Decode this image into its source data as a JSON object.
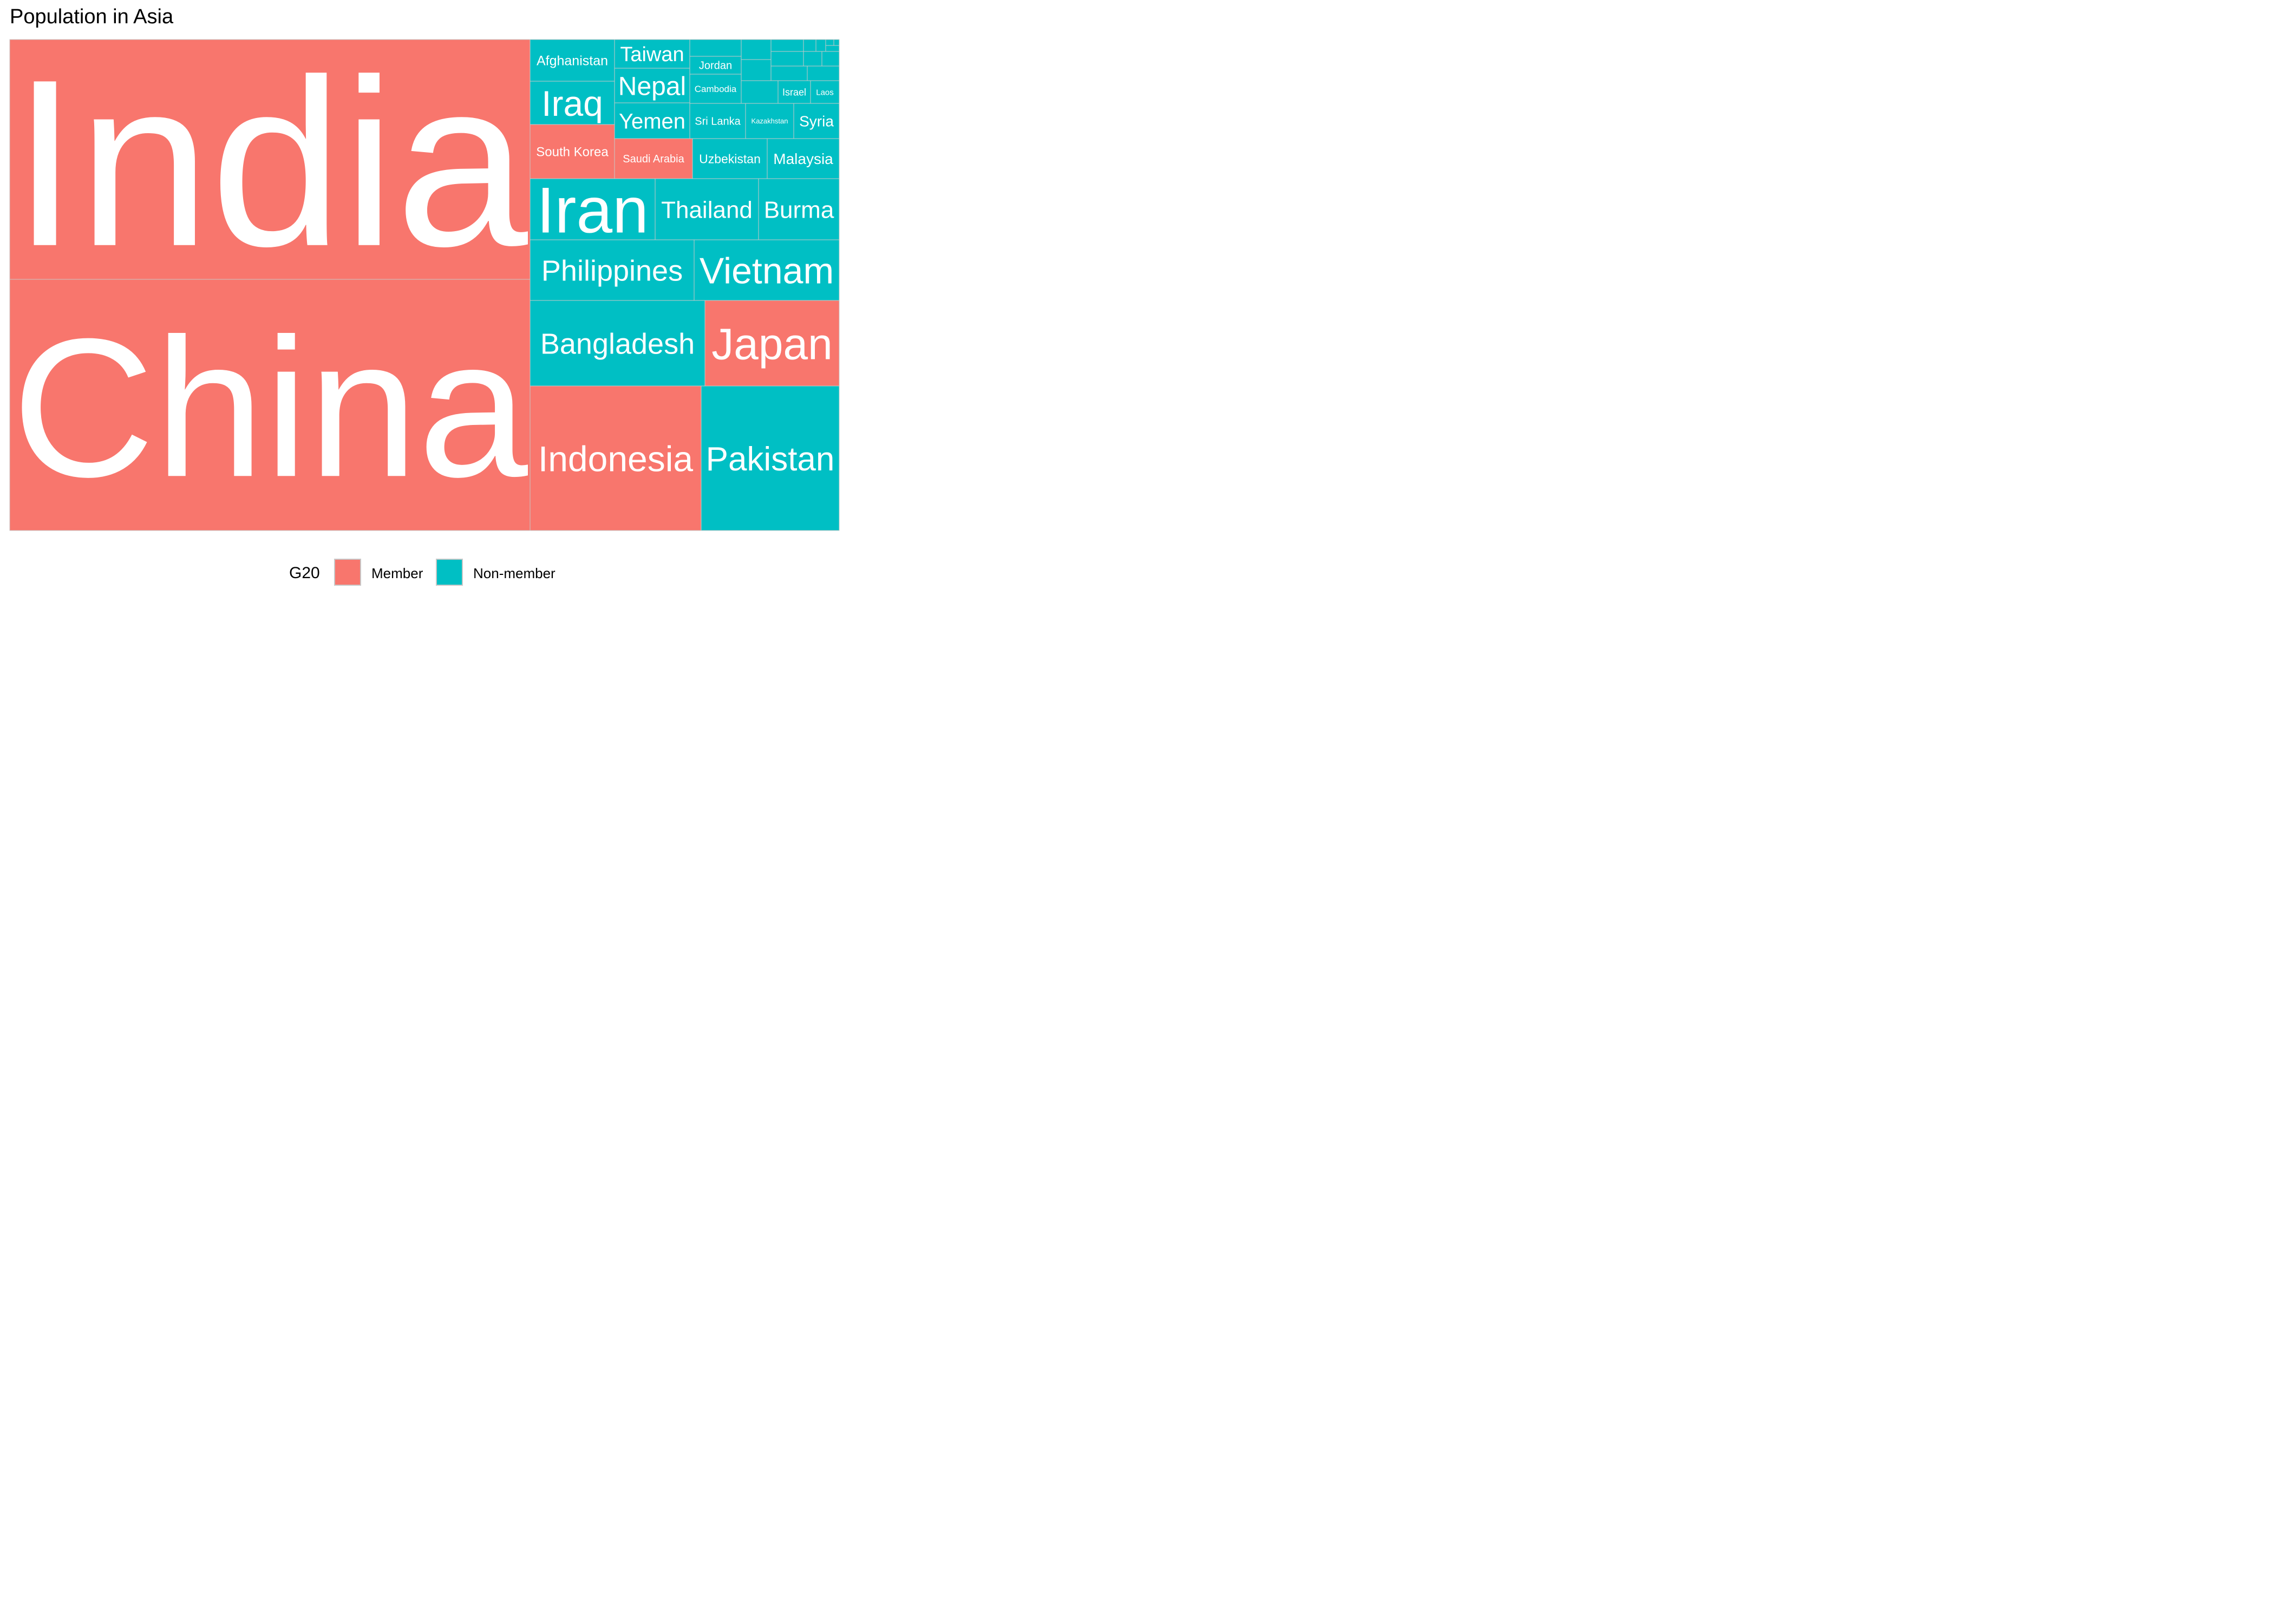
{
  "chart_data": {
    "type": "treemap",
    "title": "Population in Asia",
    "colors": {
      "Member": "#F8766D",
      "Non-member": "#00BFC4"
    },
    "legend": {
      "title": "G20",
      "position": "bottom",
      "entries": [
        "Member",
        "Non-member"
      ]
    },
    "nodes": [
      {
        "name": "India",
        "g20": "Member",
        "value": 1236
      },
      {
        "name": "China",
        "g20": "Member",
        "value": 1356
      },
      {
        "name": "Afghanistan",
        "g20": "Non-member",
        "value": 32
      },
      {
        "name": "Iraq",
        "g20": "Non-member",
        "value": 33
      },
      {
        "name": "South Korea",
        "g20": "Member",
        "value": 49
      },
      {
        "name": "Taiwan",
        "g20": "Non-member",
        "value": 23
      },
      {
        "name": "Nepal",
        "g20": "Non-member",
        "value": 31
      },
      {
        "name": "Yemen",
        "g20": "Non-member",
        "value": 26
      },
      {
        "name": "Jordan",
        "g20": "Non-member",
        "value": 7
      },
      {
        "name": "Cambodia",
        "g20": "Non-member",
        "value": 15
      },
      {
        "name": "Israel",
        "g20": "Non-member",
        "value": 8
      },
      {
        "name": "Laos",
        "g20": "Non-member",
        "value": 7
      },
      {
        "name": "Sri Lanka",
        "g20": "Non-member",
        "value": 22
      },
      {
        "name": "Kazakhstan",
        "g20": "Non-member",
        "value": 18
      },
      {
        "name": "Syria",
        "g20": "Non-member",
        "value": 22
      },
      {
        "name": "Saudi Arabia",
        "g20": "Member",
        "value": 27
      },
      {
        "name": "Uzbekistan",
        "g20": "Non-member",
        "value": 29
      },
      {
        "name": "Malaysia",
        "g20": "Non-member",
        "value": 30
      },
      {
        "name": "Iran",
        "g20": "Non-member",
        "value": 80
      },
      {
        "name": "Thailand",
        "g20": "Non-member",
        "value": 67
      },
      {
        "name": "Burma",
        "g20": "Non-member",
        "value": 55
      },
      {
        "name": "Philippines",
        "g20": "Non-member",
        "value": 107
      },
      {
        "name": "Vietnam",
        "g20": "Non-member",
        "value": 93
      },
      {
        "name": "Bangladesh",
        "g20": "Non-member",
        "value": 166
      },
      {
        "name": "Japan",
        "g20": "Member",
        "value": 127
      },
      {
        "name": "Indonesia",
        "g20": "Member",
        "value": 253
      },
      {
        "name": "Pakistan",
        "g20": "Non-member",
        "value": 196
      }
    ]
  }
}
